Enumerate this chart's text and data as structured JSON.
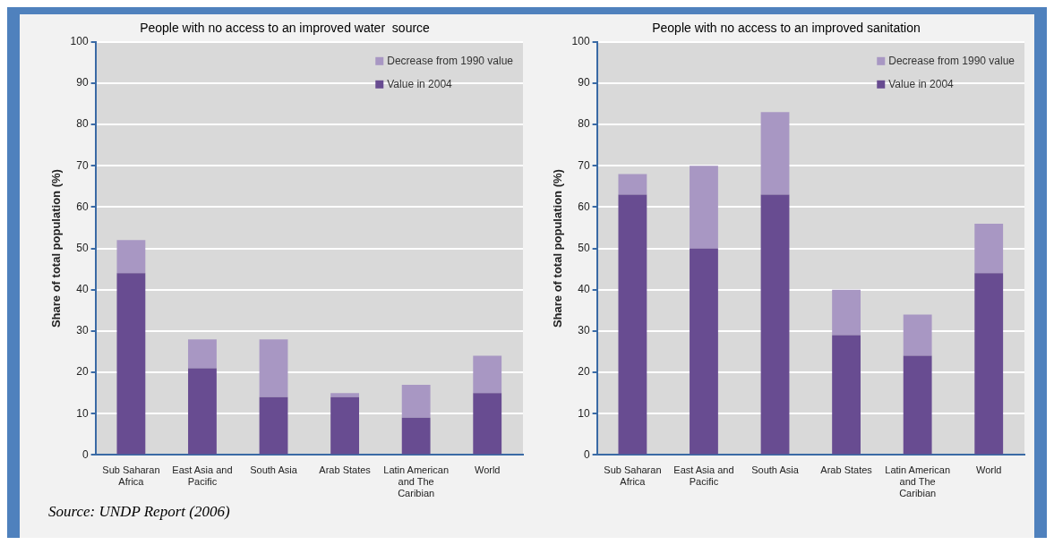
{
  "chart_data": [
    {
      "type": "bar",
      "title": "People with no access to an improved water  source",
      "ylabel": "Share of total population (%)",
      "categories": [
        "Sub Saharan Africa",
        "East Asia and Pacific",
        "South Asia",
        "Arab States",
        "Latin American and The Caribian",
        "World"
      ],
      "stacked": true,
      "series": [
        {
          "name": "Value in 2004",
          "color": "#684c91",
          "values": [
            44,
            21,
            14,
            14,
            9,
            15
          ]
        },
        {
          "name": "Decrease from 1990 value",
          "color": "#a897c3",
          "values": [
            8,
            7,
            14,
            1,
            8,
            9
          ]
        }
      ],
      "ylim": [
        0,
        100
      ],
      "yticks": [
        0,
        10,
        20,
        30,
        40,
        50,
        60,
        70,
        80,
        90,
        100
      ],
      "grid": "y",
      "legend": "top right",
      "annotations": [
        "Source: UNDP Report (2006)"
      ]
    },
    {
      "type": "bar",
      "title": "People with no access to an improved sanitation",
      "ylabel": "Share of total population (%)",
      "categories": [
        "Sub Saharan Africa",
        "East Asia and Pacific",
        "South Asia",
        "Arab States",
        "Latin American and The Caribian",
        "World"
      ],
      "stacked": true,
      "series": [
        {
          "name": "Value in 2004",
          "color": "#684c91",
          "values": [
            63,
            50,
            63,
            29,
            24,
            44
          ]
        },
        {
          "name": "Decrease from 1990 value",
          "color": "#a897c3",
          "values": [
            5,
            20,
            20,
            11,
            10,
            12
          ]
        }
      ],
      "ylim": [
        0,
        100
      ],
      "yticks": [
        0,
        10,
        20,
        30,
        40,
        50,
        60,
        70,
        80,
        90,
        100
      ],
      "grid": "y",
      "legend": "top right"
    }
  ]
}
